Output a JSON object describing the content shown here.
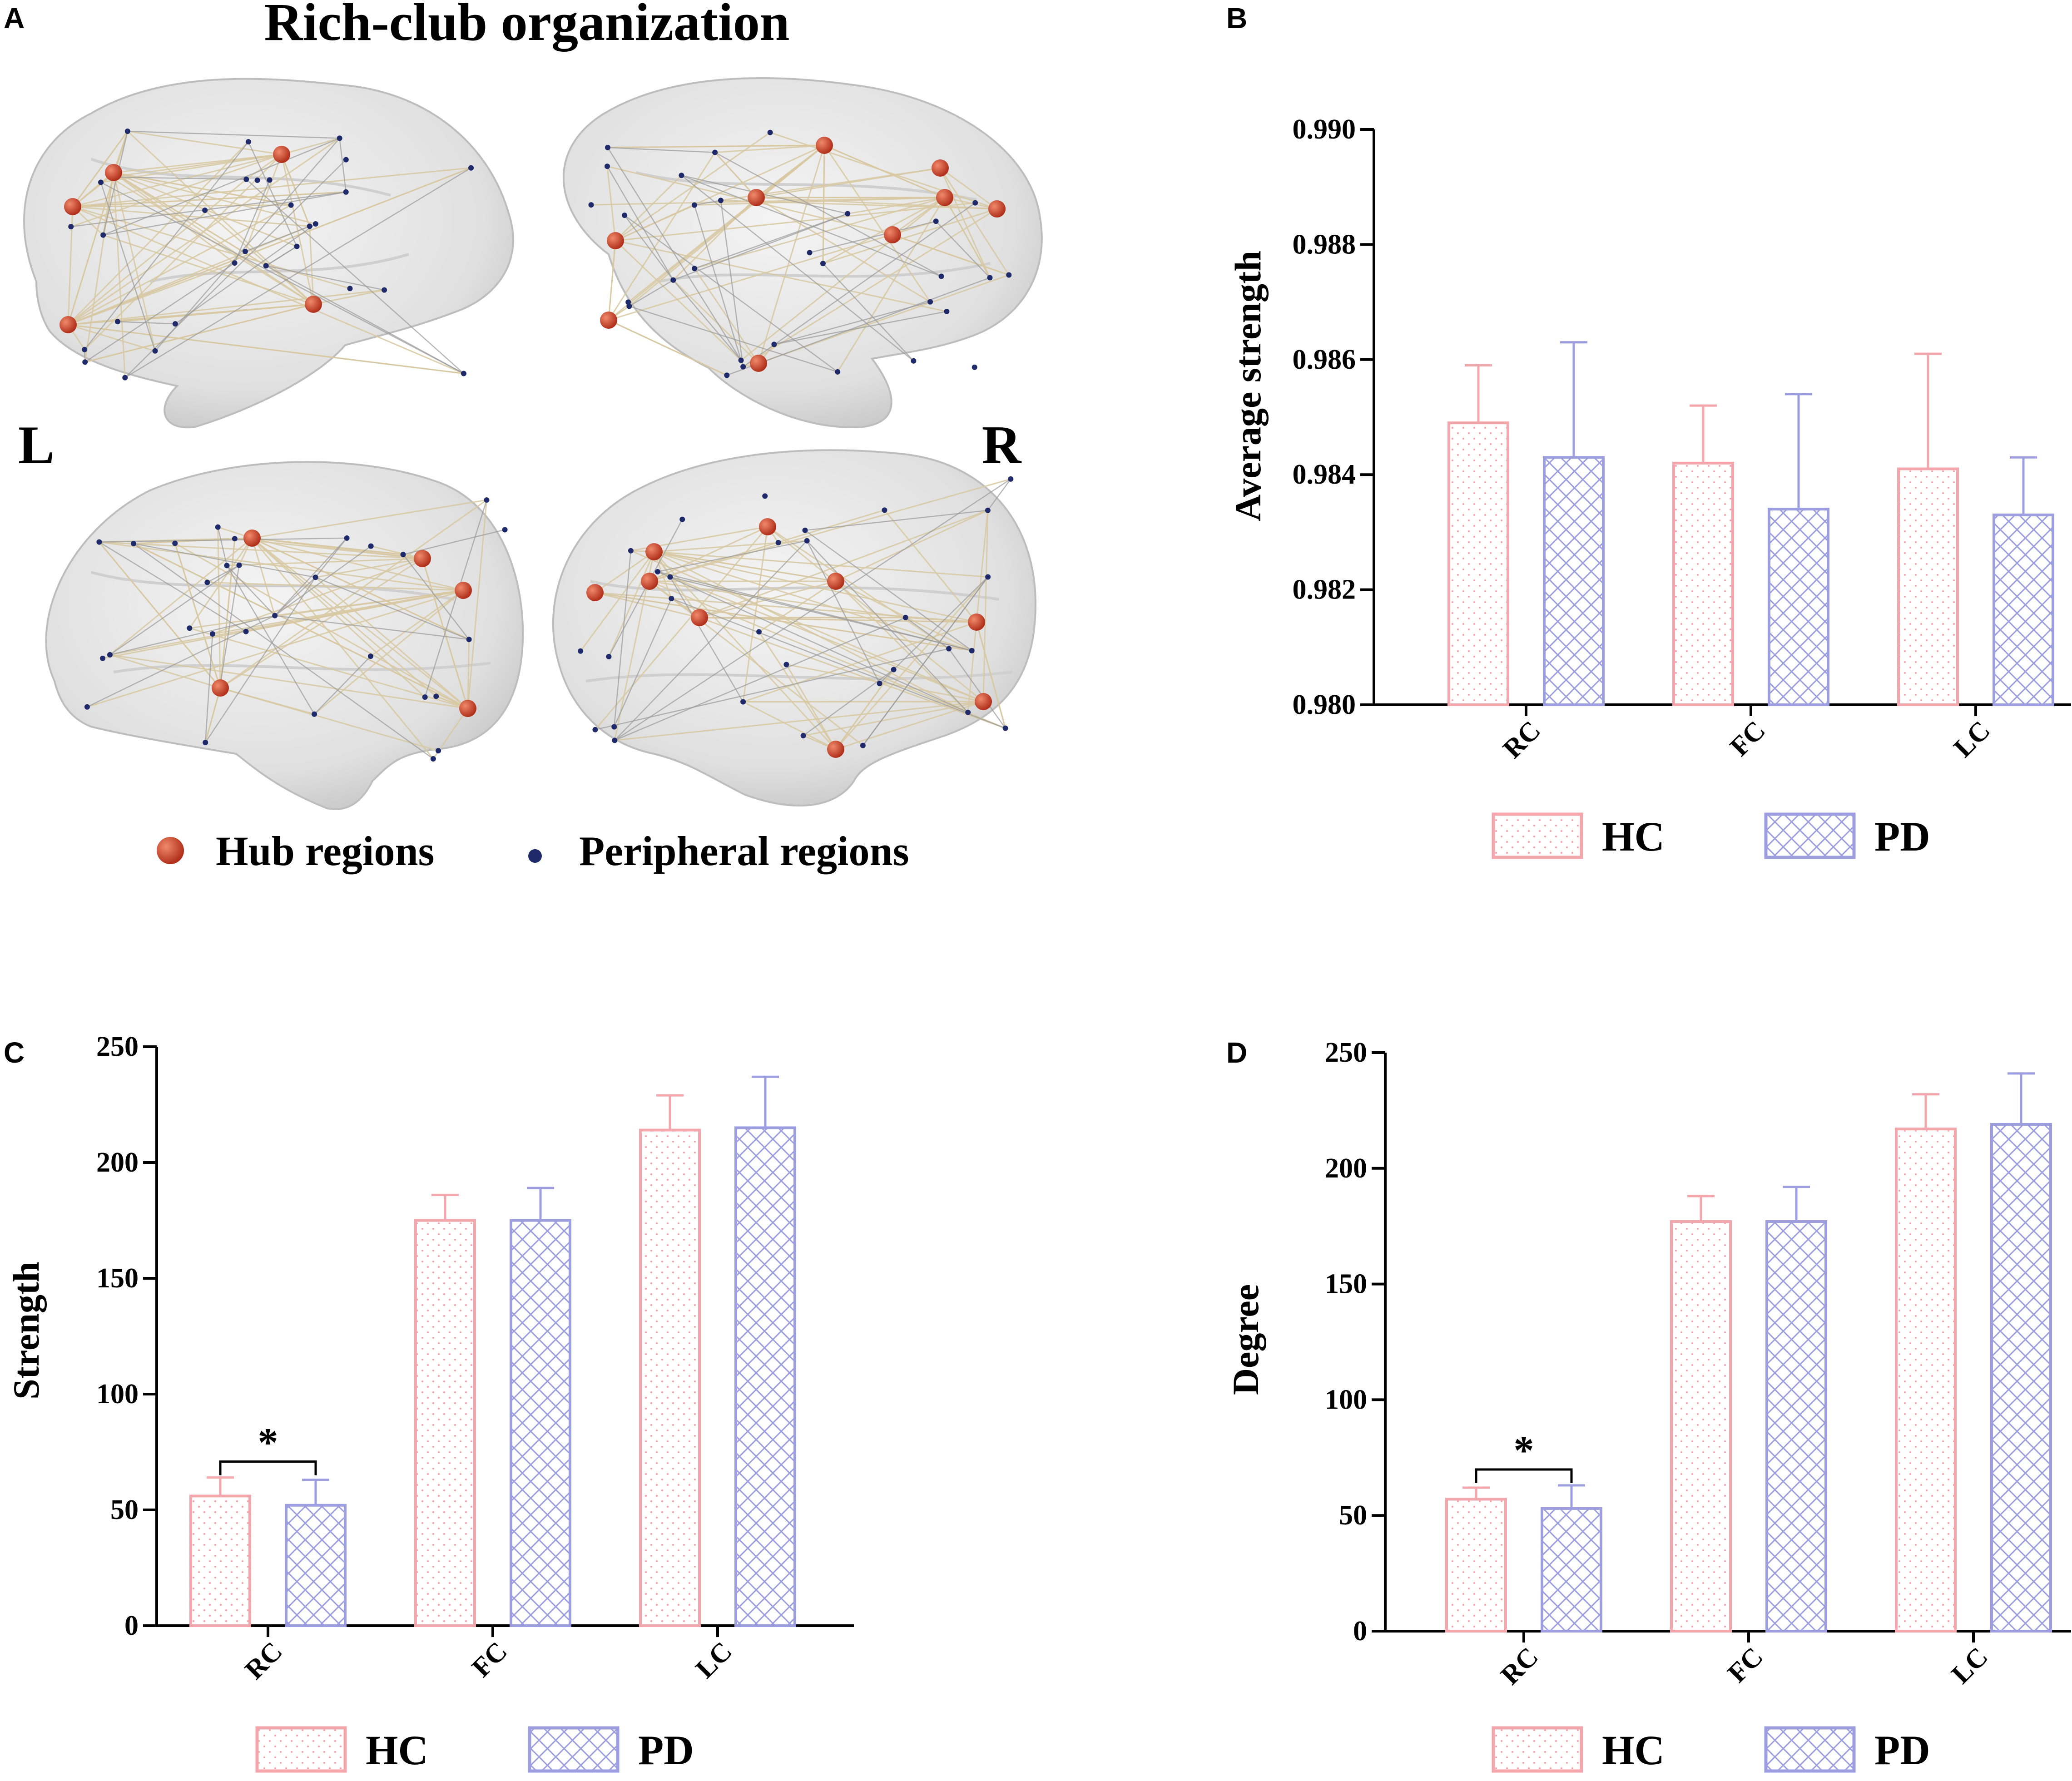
{
  "colors": {
    "hc": "#f4a6ad",
    "pd": "#9c9ee0",
    "hub": "#c9432a",
    "peripheral": "#1f2a6b",
    "edge": "#d8c9a3",
    "brain": "#d9d9d9"
  },
  "panel_a": {
    "letter": "A",
    "title": "Rich-club organization",
    "left_label": "L",
    "right_label": "R",
    "legend": {
      "hub": "Hub regions",
      "peripheral": "Peripheral regions"
    }
  },
  "chart_data": [
    {
      "id": "B",
      "letter": "B",
      "type": "bar",
      "ylabel": "Average strength",
      "categories": [
        "RC",
        "FC",
        "LC"
      ],
      "ylim": [
        0.98,
        0.99
      ],
      "yticks": [
        "0.980",
        "0.982",
        "0.984",
        "0.986",
        "0.988",
        "0.990"
      ],
      "series": [
        {
          "name": "HC",
          "values": [
            0.9849,
            0.9842,
            0.9841
          ],
          "errors": [
            0.001,
            0.001,
            0.002
          ]
        },
        {
          "name": "PD",
          "values": [
            0.9843,
            0.9834,
            0.9833
          ],
          "errors": [
            0.002,
            0.002,
            0.001
          ]
        }
      ],
      "significance": []
    },
    {
      "id": "C",
      "letter": "C",
      "type": "bar",
      "ylabel": "Strength",
      "categories": [
        "RC",
        "FC",
        "LC"
      ],
      "ylim": [
        0,
        250
      ],
      "yticks": [
        "0",
        "50",
        "100",
        "150",
        "200",
        "250"
      ],
      "series": [
        {
          "name": "HC",
          "values": [
            56,
            175,
            214
          ],
          "errors": [
            8,
            11,
            15
          ]
        },
        {
          "name": "PD",
          "values": [
            52,
            175,
            215
          ],
          "errors": [
            11,
            14,
            22
          ]
        }
      ],
      "significance": [
        {
          "category": "RC",
          "label": "*"
        }
      ]
    },
    {
      "id": "D",
      "letter": "D",
      "type": "bar",
      "ylabel": "Degree",
      "categories": [
        "RC",
        "FC",
        "LC"
      ],
      "ylim": [
        0,
        250
      ],
      "yticks": [
        "0",
        "50",
        "100",
        "150",
        "200",
        "250"
      ],
      "series": [
        {
          "name": "HC",
          "values": [
            57,
            177,
            217
          ],
          "errors": [
            5,
            11,
            15
          ]
        },
        {
          "name": "PD",
          "values": [
            53,
            177,
            219
          ],
          "errors": [
            10,
            15,
            22
          ]
        }
      ],
      "significance": [
        {
          "category": "RC",
          "label": "*"
        }
      ]
    }
  ]
}
